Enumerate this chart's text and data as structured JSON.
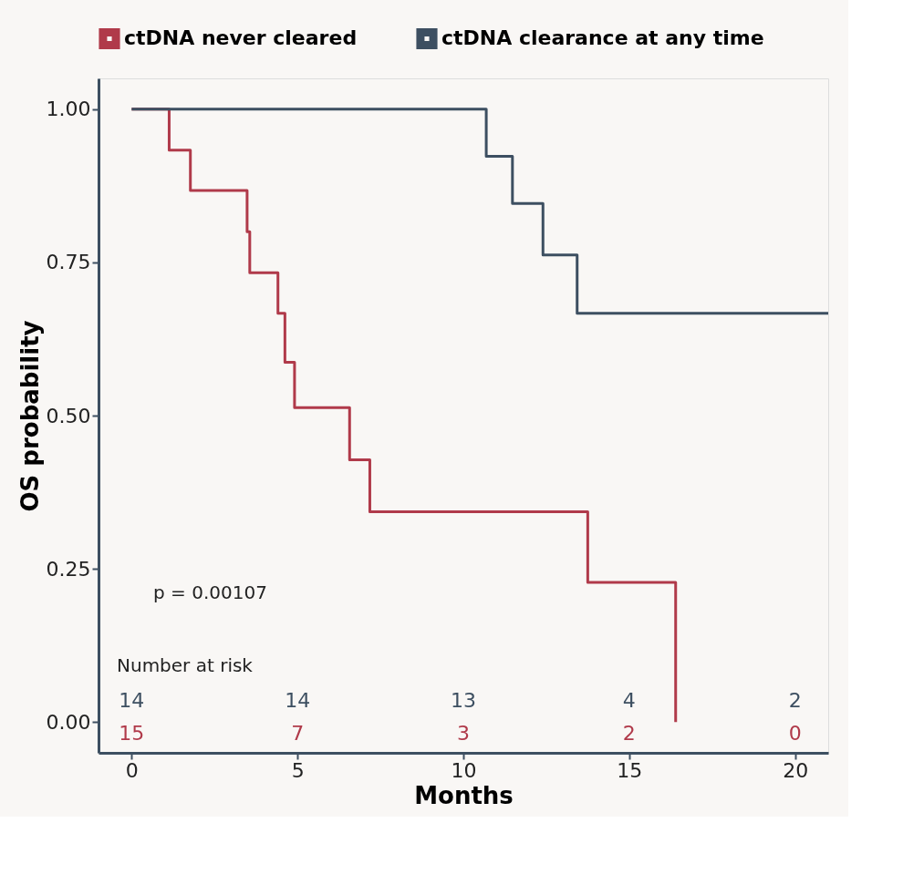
{
  "chart_data": {
    "type": "step",
    "xlabel": "Months",
    "ylabel": "OS probability",
    "xlim": [
      -1,
      21
    ],
    "xticks": [
      0,
      5,
      10,
      15,
      20
    ],
    "ylim": [
      -0.05,
      1.05
    ],
    "yticks": [
      {
        "value": 0,
        "label": "0.00"
      },
      {
        "value": 0.25,
        "label": "0.25"
      },
      {
        "value": 0.5,
        "label": "0.50"
      },
      {
        "value": 0.75,
        "label": "0.75"
      },
      {
        "value": 1,
        "label": "1.00"
      }
    ],
    "grid": false,
    "legend": "top",
    "line_style": "solid",
    "marker": "none",
    "series": [
      {
        "name": "ctDNA never cleared",
        "color": "#b03a4a",
        "x": [
          0,
          1.13,
          1.77,
          3.48,
          3.56,
          4.41,
          4.62,
          4.91,
          6.57,
          7.18,
          13.75,
          16.4
        ],
        "values": [
          1,
          0.933,
          0.867,
          0.8,
          0.733,
          0.667,
          0.587,
          0.513,
          0.428,
          0.343,
          0.228,
          0
        ]
      },
      {
        "name": "ctDNA clearance at any time",
        "color": "#3d4f61",
        "x": [
          0,
          10.69,
          11.48,
          12.4,
          13.43,
          21
        ],
        "values": [
          1,
          0.923,
          0.846,
          0.762,
          0.667,
          0.667
        ]
      }
    ],
    "annotations": [
      "p = 0.00107",
      "Number at risk",
      "14",
      "14",
      "13",
      "4",
      "2",
      "15",
      "7",
      "3",
      "2",
      "0"
    ]
  }
}
